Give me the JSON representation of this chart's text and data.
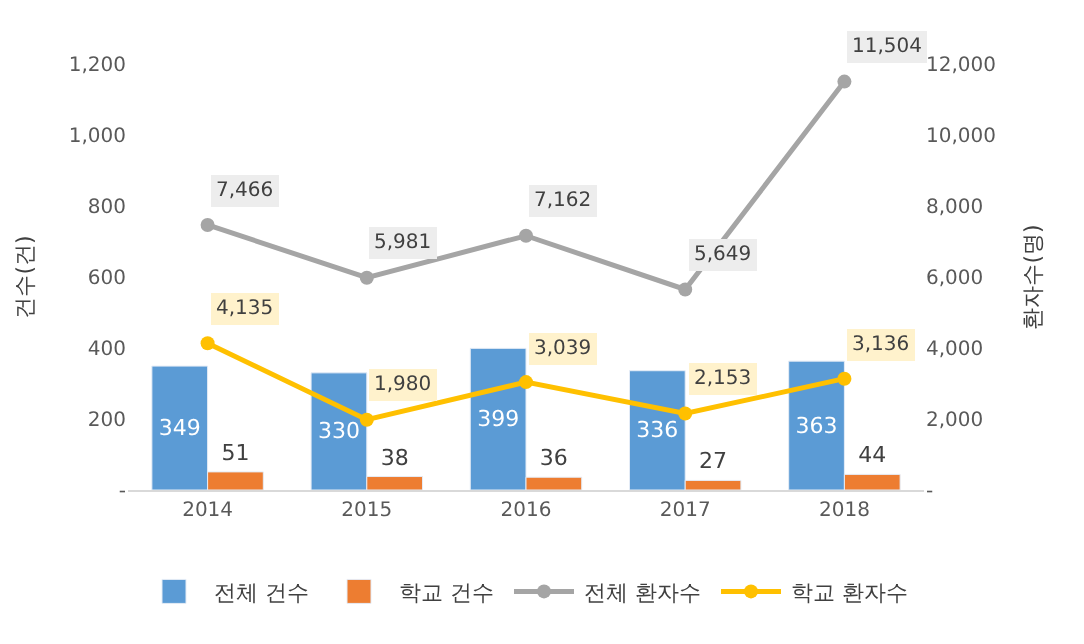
{
  "chart_data": {
    "type": "bar",
    "ylabel": "건수(건)",
    "y2label": "환자수(명)",
    "categories": [
      "2014",
      "2015",
      "2016",
      "2017",
      "2018"
    ],
    "series": [
      {
        "name": "전체 건수",
        "color": "#5b9bd5",
        "values": [
          349,
          330,
          399,
          336,
          363
        ]
      },
      {
        "name": "학교 건수",
        "color": "#ed7d31",
        "values": [
          51,
          38,
          36,
          27,
          44
        ]
      },
      {
        "name": "전체 환자수",
        "type": "line",
        "axis": "y2",
        "color": "#a5a5a5",
        "values": [
          7466,
          5981,
          7162,
          5649,
          11504
        ],
        "value_labels": [
          "7,466",
          "5,981",
          "7,162",
          "5,649",
          "11,504"
        ]
      },
      {
        "name": "학교 환자수",
        "type": "line",
        "axis": "y2",
        "color": "#ffc000",
        "values": [
          4135,
          1980,
          3039,
          2153,
          3136
        ],
        "value_labels": [
          "4,135",
          "1,980",
          "3,039",
          "2,153",
          "3,136"
        ]
      }
    ],
    "ylim": [
      0,
      1200
    ],
    "yticks": [
      {
        "value": 0,
        "label": "-"
      },
      {
        "value": 200,
        "label": "200"
      },
      {
        "value": 400,
        "label": "400"
      },
      {
        "value": 600,
        "label": "600"
      },
      {
        "value": 800,
        "label": "800"
      },
      {
        "value": 1000,
        "label": "1,000"
      },
      {
        "value": 1200,
        "label": "1,200"
      }
    ],
    "y2lim": [
      0,
      12000
    ],
    "y2ticks": [
      {
        "value": 0,
        "label": "-"
      },
      {
        "value": 2000,
        "label": "2,000"
      },
      {
        "value": 4000,
        "label": "4,000"
      },
      {
        "value": 6000,
        "label": "6,000"
      },
      {
        "value": 8000,
        "label": "8,000"
      },
      {
        "value": 10000,
        "label": "10,000"
      },
      {
        "value": 12000,
        "label": "12,000"
      }
    ],
    "data_labels": true,
    "marker": "circle",
    "legend": "bottom"
  }
}
